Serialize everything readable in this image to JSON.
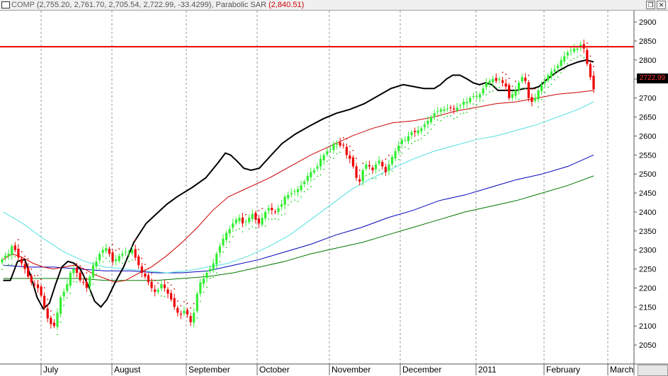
{
  "window": {
    "symbol": "COMP",
    "ohlc": "(2,755.20, 2,761.70, 2,705.54, 2,722.99, -33.4299)",
    "indicator": "Parabolic SAR",
    "indicator_value": "(2,840.51)",
    "restore_icon": "restore-icon",
    "close_icon": "close-icon"
  },
  "price_tag": "2722.99",
  "chart_data": {
    "type": "candlestick",
    "x_labels": [
      "July",
      "August",
      "September",
      "October",
      "November",
      "December",
      "2011",
      "February",
      "March"
    ],
    "y_ticks": [
      2050,
      2100,
      2150,
      2200,
      2250,
      2300,
      2350,
      2400,
      2450,
      2500,
      2550,
      2600,
      2650,
      2700,
      2750,
      2800,
      2850,
      2900
    ],
    "ylim": [
      2000,
      2930
    ],
    "resistance_level": 2835,
    "grid": "vertical dashed at month starts",
    "colors": {
      "up_candle": "#33ee33",
      "down_candle": "#ee0000",
      "resistance": "#ee0000",
      "ma_black": "#000000",
      "ma_red": "#cc0000",
      "ma_cyan": "#55e0e0",
      "ma_blue": "#0000bb",
      "ma_green": "#007700",
      "sar_up": "#cc0000",
      "sar_down": "#22cc22"
    },
    "closes": [
      2275,
      2285,
      2290,
      2310,
      2300,
      2280,
      2265,
      2250,
      2230,
      2215,
      2210,
      2200,
      2180,
      2150,
      2120,
      2105,
      2100,
      2135,
      2175,
      2190,
      2210,
      2240,
      2250,
      2240,
      2220,
      2215,
      2200,
      2230,
      2260,
      2270,
      2290,
      2300,
      2305,
      2290,
      2270,
      2275,
      2285,
      2290,
      2295,
      2295,
      2300,
      2280,
      2260,
      2240,
      2230,
      2215,
      2200,
      2190,
      2195,
      2210,
      2200,
      2185,
      2170,
      2150,
      2135,
      2130,
      2140,
      2130,
      2110,
      2135,
      2185,
      2215,
      2225,
      2240,
      2250,
      2265,
      2290,
      2310,
      2330,
      2345,
      2355,
      2370,
      2380,
      2385,
      2370,
      2375,
      2385,
      2395,
      2380,
      2370,
      2385,
      2400,
      2410,
      2405,
      2400,
      2410,
      2420,
      2440,
      2445,
      2450,
      2455,
      2460,
      2470,
      2480,
      2495,
      2505,
      2510,
      2520,
      2540,
      2550,
      2560,
      2565,
      2580,
      2580,
      2575,
      2575,
      2550,
      2540,
      2520,
      2490,
      2480,
      2510,
      2525,
      2520,
      2510,
      2525,
      2535,
      2520,
      2505,
      2525,
      2545,
      2560,
      2575,
      2590,
      2590,
      2600,
      2610,
      2610,
      2615,
      2620,
      2630,
      2640,
      2650,
      2660,
      2665,
      2670,
      2670,
      2672,
      2675,
      2670,
      2675,
      2680,
      2690,
      2690,
      2700,
      2705,
      2705,
      2710,
      2725,
      2740,
      2745,
      2750,
      2745,
      2750,
      2740,
      2730,
      2700,
      2710,
      2720,
      2740,
      2755,
      2745,
      2700,
      2690,
      2700,
      2720,
      2735,
      2745,
      2760,
      2770,
      2775,
      2785,
      2800,
      2810,
      2820,
      2825,
      2830,
      2830,
      2840,
      2830,
      2790,
      2755,
      2722.99
    ],
    "ma_black": [
      [
        1,
        2220
      ],
      [
        8,
        2220
      ],
      [
        15,
        2270
      ],
      [
        22,
        2275
      ],
      [
        28,
        2230
      ],
      [
        34,
        2175
      ],
      [
        40,
        2145
      ],
      [
        46,
        2160
      ],
      [
        52,
        2210
      ],
      [
        58,
        2255
      ],
      [
        64,
        2270
      ],
      [
        70,
        2265
      ],
      [
        76,
        2250
      ],
      [
        84,
        2205
      ],
      [
        90,
        2165
      ],
      [
        96,
        2150
      ],
      [
        102,
        2170
      ],
      [
        110,
        2215
      ],
      [
        118,
        2255
      ],
      [
        128,
        2320
      ],
      [
        140,
        2370
      ],
      [
        150,
        2395
      ],
      [
        160,
        2420
      ],
      [
        170,
        2440
      ],
      [
        185,
        2465
      ],
      [
        198,
        2490
      ],
      [
        210,
        2530
      ],
      [
        217,
        2555
      ],
      [
        222,
        2550
      ],
      [
        228,
        2535
      ],
      [
        235,
        2515
      ],
      [
        242,
        2510
      ],
      [
        250,
        2515
      ],
      [
        260,
        2545
      ],
      [
        272,
        2580
      ],
      [
        285,
        2605
      ],
      [
        298,
        2625
      ],
      [
        312,
        2645
      ],
      [
        325,
        2660
      ],
      [
        338,
        2670
      ],
      [
        352,
        2685
      ],
      [
        365,
        2705
      ],
      [
        378,
        2725
      ],
      [
        390,
        2735
      ],
      [
        400,
        2730
      ],
      [
        410,
        2725
      ],
      [
        420,
        2725
      ],
      [
        426,
        2735
      ],
      [
        432,
        2750
      ],
      [
        438,
        2760
      ],
      [
        445,
        2760
      ],
      [
        452,
        2750
      ],
      [
        458,
        2740
      ],
      [
        464,
        2735
      ],
      [
        470,
        2740
      ],
      [
        476,
        2735
      ],
      [
        482,
        2720
      ],
      [
        490,
        2720
      ],
      [
        500,
        2720
      ],
      [
        508,
        2725
      ],
      [
        516,
        2725
      ],
      [
        522,
        2730
      ],
      [
        530,
        2750
      ],
      [
        540,
        2770
      ],
      [
        550,
        2785
      ],
      [
        560,
        2795
      ],
      [
        568,
        2800
      ],
      [
        575,
        2795
      ]
    ],
    "ma_red": [
      [
        1,
        2275
      ],
      [
        10,
        2290
      ],
      [
        20,
        2280
      ],
      [
        30,
        2265
      ],
      [
        40,
        2255
      ],
      [
        50,
        2250
      ],
      [
        60,
        2255
      ],
      [
        70,
        2260
      ],
      [
        80,
        2250
      ],
      [
        90,
        2235
      ],
      [
        100,
        2225
      ],
      [
        110,
        2215
      ],
      [
        120,
        2220
      ],
      [
        130,
        2235
      ],
      [
        145,
        2255
      ],
      [
        160,
        2285
      ],
      [
        175,
        2320
      ],
      [
        190,
        2360
      ],
      [
        205,
        2405
      ],
      [
        220,
        2440
      ],
      [
        240,
        2465
      ],
      [
        260,
        2490
      ],
      [
        280,
        2520
      ],
      [
        300,
        2550
      ],
      [
        320,
        2575
      ],
      [
        340,
        2600
      ],
      [
        360,
        2620
      ],
      [
        380,
        2635
      ],
      [
        400,
        2640
      ],
      [
        420,
        2650
      ],
      [
        440,
        2665
      ],
      [
        460,
        2675
      ],
      [
        480,
        2685
      ],
      [
        500,
        2690
      ],
      [
        520,
        2700
      ],
      [
        540,
        2710
      ],
      [
        560,
        2715
      ],
      [
        575,
        2720
      ]
    ],
    "ma_cyan": [
      [
        1,
        2400
      ],
      [
        20,
        2370
      ],
      [
        40,
        2330
      ],
      [
        60,
        2295
      ],
      [
        80,
        2270
      ],
      [
        100,
        2255
      ],
      [
        120,
        2250
      ],
      [
        140,
        2245
      ],
      [
        160,
        2240
      ],
      [
        180,
        2245
      ],
      [
        200,
        2255
      ],
      [
        220,
        2265
      ],
      [
        240,
        2285
      ],
      [
        260,
        2310
      ],
      [
        280,
        2340
      ],
      [
        300,
        2380
      ],
      [
        320,
        2420
      ],
      [
        340,
        2460
      ],
      [
        360,
        2490
      ],
      [
        380,
        2515
      ],
      [
        400,
        2540
      ],
      [
        420,
        2560
      ],
      [
        440,
        2575
      ],
      [
        460,
        2590
      ],
      [
        480,
        2600
      ],
      [
        500,
        2615
      ],
      [
        520,
        2630
      ],
      [
        540,
        2650
      ],
      [
        560,
        2670
      ],
      [
        575,
        2690
      ]
    ],
    "ma_blue": [
      [
        1,
        2260
      ],
      [
        25,
        2255
      ],
      [
        50,
        2255
      ],
      [
        75,
        2250
      ],
      [
        100,
        2245
      ],
      [
        125,
        2245
      ],
      [
        150,
        2240
      ],
      [
        175,
        2240
      ],
      [
        200,
        2245
      ],
      [
        225,
        2260
      ],
      [
        250,
        2275
      ],
      [
        275,
        2295
      ],
      [
        300,
        2315
      ],
      [
        325,
        2340
      ],
      [
        350,
        2360
      ],
      [
        375,
        2385
      ],
      [
        400,
        2405
      ],
      [
        425,
        2430
      ],
      [
        450,
        2445
      ],
      [
        475,
        2465
      ],
      [
        500,
        2485
      ],
      [
        525,
        2500
      ],
      [
        550,
        2520
      ],
      [
        575,
        2550
      ]
    ],
    "ma_green": [
      [
        1,
        2225
      ],
      [
        25,
        2225
      ],
      [
        50,
        2225
      ],
      [
        75,
        2225
      ],
      [
        100,
        2220
      ],
      [
        125,
        2220
      ],
      [
        150,
        2220
      ],
      [
        175,
        2225
      ],
      [
        200,
        2230
      ],
      [
        225,
        2240
      ],
      [
        250,
        2255
      ],
      [
        275,
        2270
      ],
      [
        300,
        2290
      ],
      [
        325,
        2305
      ],
      [
        350,
        2320
      ],
      [
        375,
        2340
      ],
      [
        400,
        2360
      ],
      [
        425,
        2380
      ],
      [
        450,
        2400
      ],
      [
        475,
        2415
      ],
      [
        500,
        2430
      ],
      [
        525,
        2450
      ],
      [
        550,
        2470
      ],
      [
        575,
        2495
      ]
    ]
  }
}
